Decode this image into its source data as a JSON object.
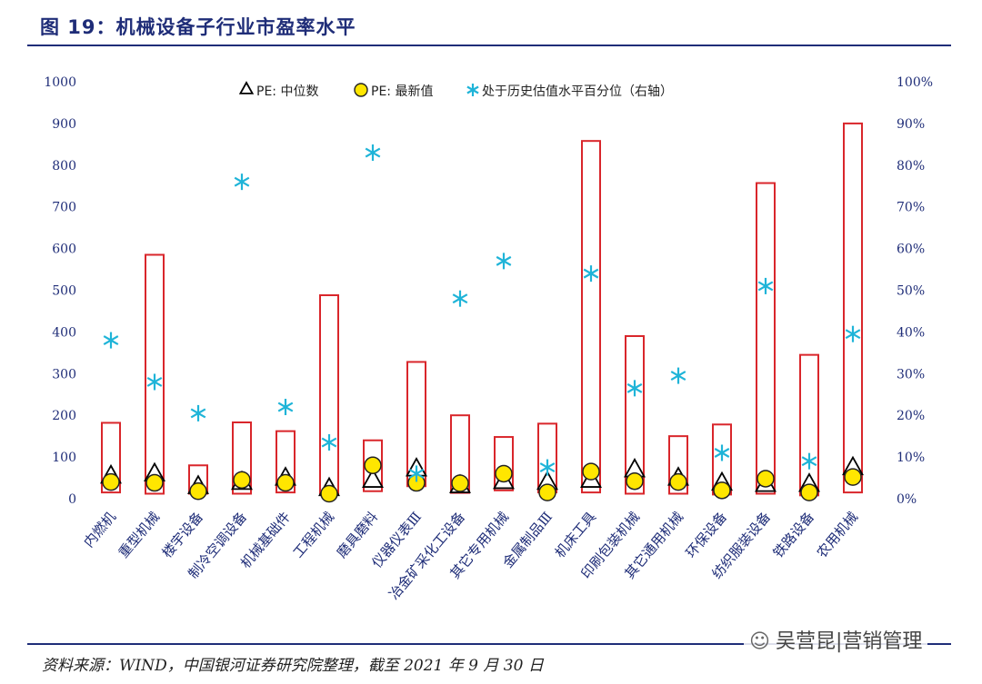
{
  "page": {
    "title": "图 19：机械设备子行业市盈率水平",
    "source": "资料来源：WIND，中国银河证券研究院整理，截至 2021 年 9 月 30 日",
    "watermark": "吴营昆|营销管理",
    "watermark_icon": "wechat-icon"
  },
  "chart_data": {
    "type": "bar",
    "categories": [
      "内燃机",
      "重型机械",
      "楼宇设备",
      "制冷空调设备",
      "机械基础件",
      "工程机械",
      "磨具磨料",
      "仪器仪表Ⅲ",
      "冶金矿采化工设备",
      "其它专用机械",
      "金属制品Ⅲ",
      "机床工具",
      "印刷包装机械",
      "其它通用机械",
      "环保设备",
      "纺织服装设备",
      "铁路设备",
      "农用机械"
    ],
    "range_low": [
      15,
      12,
      12,
      12,
      15,
      10,
      18,
      30,
      14,
      20,
      15,
      15,
      12,
      12,
      10,
      12,
      8,
      15
    ],
    "range_high": [
      182,
      585,
      80,
      183,
      162,
      488,
      140,
      328,
      200,
      148,
      180,
      858,
      390,
      150,
      178,
      757,
      345,
      900
    ],
    "series": [
      {
        "name": "PE: 中位数",
        "marker": "triangle",
        "values": [
          55,
          60,
          30,
          40,
          50,
          25,
          45,
          72,
          32,
          42,
          40,
          45,
          70,
          50,
          38,
          35,
          35,
          75
        ]
      },
      {
        "name": "PE: 最新值",
        "marker": "circle",
        "values": [
          40,
          38,
          18,
          45,
          38,
          12,
          80,
          38,
          37,
          60,
          15,
          65,
          42,
          40,
          20,
          48,
          15,
          52
        ]
      },
      {
        "name": "处于历史估值水平百分位（右轴）",
        "marker": "asterisk",
        "axis": "right",
        "values": [
          38,
          28,
          20.5,
          76,
          22,
          13.5,
          83,
          6,
          48,
          57,
          7.5,
          54,
          26.5,
          29.5,
          11,
          51,
          9,
          39.5
        ]
      }
    ],
    "yticks_left": [
      "0",
      "100",
      "200",
      "300",
      "400",
      "500",
      "600",
      "700",
      "800",
      "900",
      "1000"
    ],
    "yticks_right": [
      "0%",
      "10%",
      "20%",
      "30%",
      "40%",
      "50%",
      "60%",
      "70%",
      "80%",
      "90%",
      "100%"
    ],
    "ylim": [
      0,
      1000
    ],
    "ylim_right": [
      0,
      100
    ],
    "legend_position": "top-center",
    "colors": {
      "bar_border": "#d9262b",
      "triangle": "#000000",
      "circle_fill": "#ffe600",
      "circle_stroke": "#222222",
      "asterisk": "#1fb4d8",
      "axis_text": "#1f2d78"
    }
  }
}
